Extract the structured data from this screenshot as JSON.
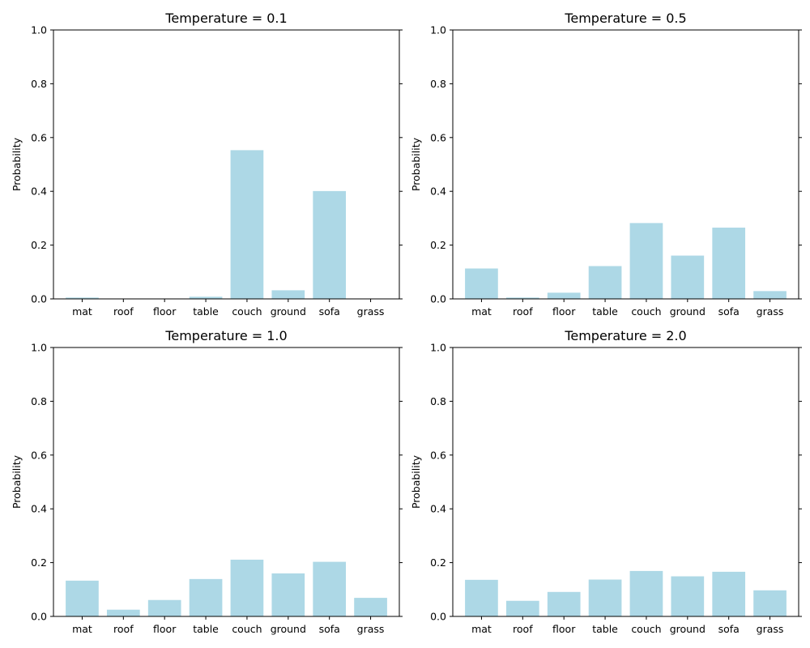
{
  "chart_data": [
    {
      "type": "bar",
      "title": "Temperature = 0.1",
      "ylabel": "Probability",
      "xlabel": "",
      "ylim": [
        0,
        1
      ],
      "yticks": [
        "0.0",
        "0.2",
        "0.4",
        "0.6",
        "0.8",
        "1.0"
      ],
      "grid": false,
      "bar_color": "#add8e6",
      "categories": [
        "mat",
        "roof",
        "floor",
        "table",
        "couch",
        "ground",
        "sofa",
        "grass"
      ],
      "values": [
        0.005,
        0.0,
        0.0,
        0.008,
        0.553,
        0.032,
        0.401,
        0.001
      ]
    },
    {
      "type": "bar",
      "title": "Temperature = 0.5",
      "ylabel": "Probability",
      "xlabel": "",
      "ylim": [
        0,
        1
      ],
      "yticks": [
        "0.0",
        "0.2",
        "0.4",
        "0.6",
        "0.8",
        "1.0"
      ],
      "grid": false,
      "bar_color": "#add8e6",
      "categories": [
        "mat",
        "roof",
        "floor",
        "table",
        "couch",
        "ground",
        "sofa",
        "grass"
      ],
      "values": [
        0.113,
        0.005,
        0.023,
        0.122,
        0.282,
        0.161,
        0.265,
        0.029
      ]
    },
    {
      "type": "bar",
      "title": "Temperature = 1.0",
      "ylabel": "Probability",
      "xlabel": "",
      "ylim": [
        0,
        1
      ],
      "yticks": [
        "0.0",
        "0.2",
        "0.4",
        "0.6",
        "0.8",
        "1.0"
      ],
      "grid": false,
      "bar_color": "#add8e6",
      "categories": [
        "mat",
        "roof",
        "floor",
        "table",
        "couch",
        "ground",
        "sofa",
        "grass"
      ],
      "values": [
        0.133,
        0.025,
        0.061,
        0.139,
        0.211,
        0.16,
        0.203,
        0.069
      ]
    },
    {
      "type": "bar",
      "title": "Temperature = 2.0",
      "ylabel": "Probability",
      "xlabel": "",
      "ylim": [
        0,
        1
      ],
      "yticks": [
        "0.0",
        "0.2",
        "0.4",
        "0.6",
        "0.8",
        "1.0"
      ],
      "grid": false,
      "bar_color": "#add8e6",
      "categories": [
        "mat",
        "roof",
        "floor",
        "table",
        "couch",
        "ground",
        "sofa",
        "grass"
      ],
      "values": [
        0.136,
        0.058,
        0.091,
        0.137,
        0.169,
        0.149,
        0.166,
        0.097
      ]
    }
  ]
}
